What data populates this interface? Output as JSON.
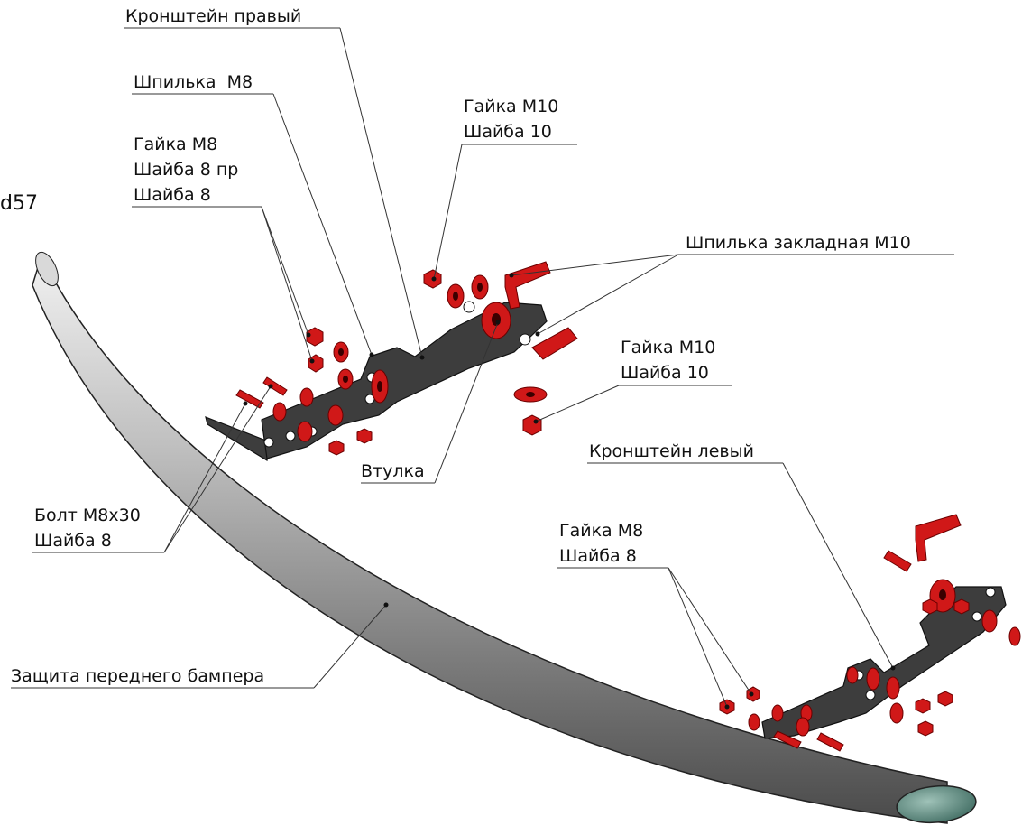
{
  "code": "d57",
  "labels": {
    "bracket_right": "Кронштейн правый",
    "stud_m8": "Шпилька  M8",
    "nut_m8_top": "Гайка M8",
    "washer_8pr": "Шайба 8 пр",
    "washer_8_top": "Шайба 8",
    "nut_m10_top": "Гайка M10",
    "washer_10_top": "Шайба 10",
    "embedded_stud_m10": "Шпилька закладная M10",
    "nut_m10_mid": "Гайка M10",
    "washer_10_mid": "Шайба 10",
    "bushing": "Втулка",
    "bracket_left": "Кронштейн левый",
    "bolt_m8x30": "Болт M8x30",
    "washer_8_left": "Шайба 8",
    "nut_m8_bottom": "Гайка M8",
    "washer_8_bottom": "Шайба 8",
    "front_bumper_guard": "Защита переднего бампера"
  },
  "colors": {
    "fastener": "#d01818",
    "bracket": "#3d3d3d",
    "tube": "#9a9a9a",
    "end_cap": "#5f8a80"
  }
}
